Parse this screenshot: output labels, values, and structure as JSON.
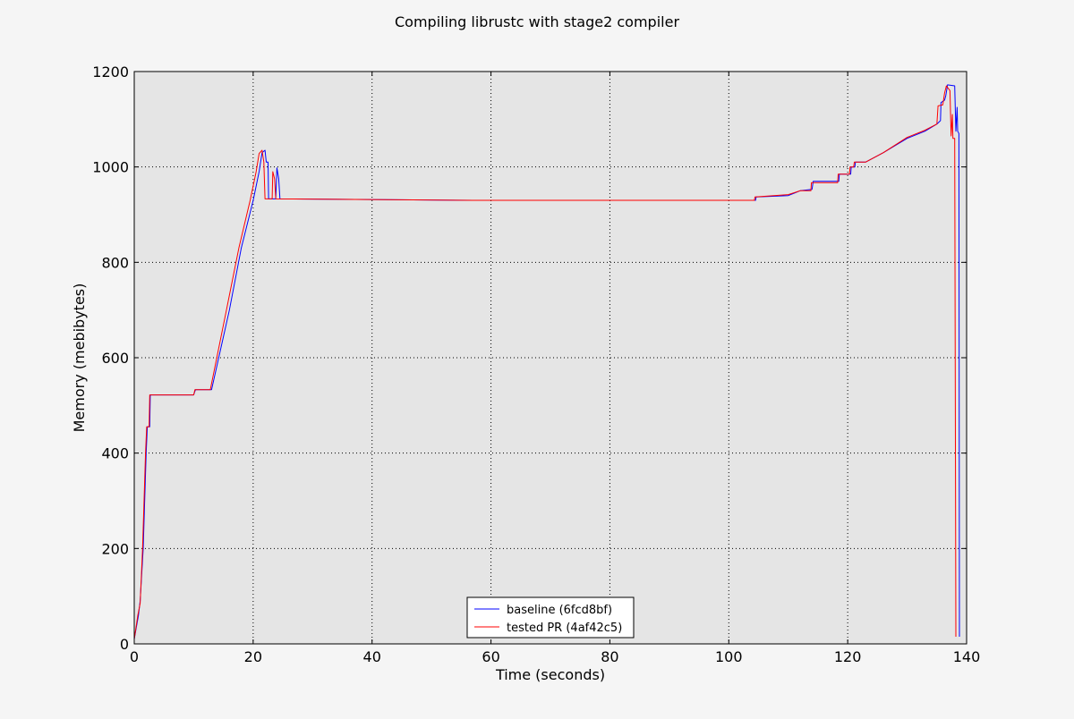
{
  "chart_data": {
    "type": "line",
    "title": "Compiling librustc with stage2 compiler",
    "xlabel": "Time (seconds)",
    "ylabel": "Memory (mebibytes)",
    "xlim": [
      0,
      140
    ],
    "ylim": [
      0,
      1200
    ],
    "xticks": [
      0,
      20,
      40,
      60,
      80,
      100,
      120,
      140
    ],
    "yticks": [
      0,
      200,
      400,
      600,
      800,
      1000,
      1200
    ],
    "grid": true,
    "legend_position": "bottom-center",
    "series": [
      {
        "name": "baseline (6fcd8bf)",
        "color": "#0000ff",
        "points": [
          [
            0,
            10
          ],
          [
            0.7,
            60
          ],
          [
            1,
            90
          ],
          [
            1.5,
            200
          ],
          [
            2,
            400
          ],
          [
            2.2,
            455
          ],
          [
            2.6,
            455
          ],
          [
            2.7,
            522
          ],
          [
            10,
            522
          ],
          [
            10.3,
            533
          ],
          [
            13,
            533
          ],
          [
            16,
            700
          ],
          [
            18,
            830
          ],
          [
            20,
            930
          ],
          [
            21,
            990
          ],
          [
            21.5,
            1030
          ],
          [
            22,
            1035
          ],
          [
            22.2,
            1010
          ],
          [
            22.5,
            1010
          ],
          [
            22.6,
            933
          ],
          [
            23.8,
            933
          ],
          [
            24,
            998
          ],
          [
            24.3,
            975
          ],
          [
            24.5,
            933
          ],
          [
            57,
            930
          ],
          [
            104.5,
            930
          ],
          [
            104.6,
            937
          ],
          [
            110,
            940
          ],
          [
            112,
            950
          ],
          [
            114,
            953
          ],
          [
            114.2,
            970
          ],
          [
            118.5,
            970
          ],
          [
            118.6,
            985
          ],
          [
            120.5,
            985
          ],
          [
            120.6,
            1000
          ],
          [
            121.2,
            1000
          ],
          [
            121.3,
            1010
          ],
          [
            123,
            1010
          ],
          [
            126,
            1030
          ],
          [
            130,
            1060
          ],
          [
            133,
            1075
          ],
          [
            135,
            1090
          ],
          [
            135.6,
            1097
          ],
          [
            135.7,
            1135
          ],
          [
            136.3,
            1140
          ],
          [
            136.5,
            1150
          ],
          [
            136.8,
            1172
          ],
          [
            138,
            1170
          ],
          [
            138.2,
            1075
          ],
          [
            138.4,
            1125
          ],
          [
            138.5,
            1075
          ],
          [
            138.7,
            1070
          ],
          [
            138.8,
            15
          ]
        ]
      },
      {
        "name": "tested PR (4af42c5)",
        "color": "#ff0000",
        "points": [
          [
            0,
            10
          ],
          [
            0.6,
            60
          ],
          [
            1,
            85
          ],
          [
            1.4,
            200
          ],
          [
            1.9,
            400
          ],
          [
            2.1,
            455
          ],
          [
            2.5,
            455
          ],
          [
            2.6,
            522
          ],
          [
            10,
            522
          ],
          [
            10.2,
            533
          ],
          [
            12.8,
            533
          ],
          [
            15.5,
            700
          ],
          [
            17.6,
            830
          ],
          [
            19.5,
            930
          ],
          [
            20.5,
            990
          ],
          [
            21,
            1028
          ],
          [
            21.5,
            1035
          ],
          [
            21.8,
            1010
          ],
          [
            22,
            933
          ],
          [
            23.2,
            933
          ],
          [
            23.3,
            990
          ],
          [
            23.6,
            975
          ],
          [
            23.8,
            933
          ],
          [
            57,
            930
          ],
          [
            104.3,
            930
          ],
          [
            104.4,
            937
          ],
          [
            110,
            942
          ],
          [
            112,
            950
          ],
          [
            113.8,
            950
          ],
          [
            113.9,
            967
          ],
          [
            118.3,
            967
          ],
          [
            118.4,
            985
          ],
          [
            120.3,
            985
          ],
          [
            120.4,
            1000
          ],
          [
            121,
            1000
          ],
          [
            121.1,
            1010
          ],
          [
            123,
            1010
          ],
          [
            126,
            1030
          ],
          [
            130,
            1062
          ],
          [
            133,
            1077
          ],
          [
            135,
            1090
          ],
          [
            135.2,
            1128
          ],
          [
            136,
            1130
          ],
          [
            136.3,
            1155
          ],
          [
            136.6,
            1170
          ],
          [
            137.2,
            1160
          ],
          [
            137.4,
            1065
          ],
          [
            137.6,
            1110
          ],
          [
            137.7,
            1060
          ],
          [
            138,
            1060
          ],
          [
            138.2,
            15
          ]
        ]
      }
    ]
  }
}
